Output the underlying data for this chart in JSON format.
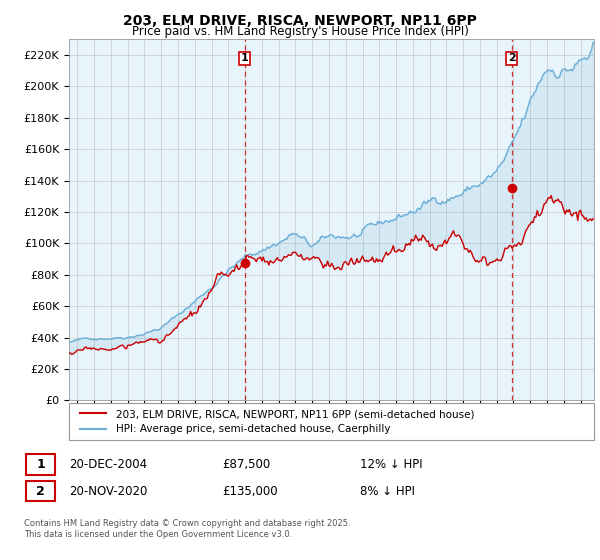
{
  "title": "203, ELM DRIVE, RISCA, NEWPORT, NP11 6PP",
  "subtitle": "Price paid vs. HM Land Registry's House Price Index (HPI)",
  "ylabel_ticks": [
    "£0",
    "£20K",
    "£40K",
    "£60K",
    "£80K",
    "£100K",
    "£120K",
    "£140K",
    "£160K",
    "£180K",
    "£200K",
    "£220K"
  ],
  "ytick_values": [
    0,
    20000,
    40000,
    60000,
    80000,
    100000,
    120000,
    140000,
    160000,
    180000,
    200000,
    220000
  ],
  "ylim": [
    0,
    230000
  ],
  "xlim_start": 1994.5,
  "xlim_end": 2025.8,
  "hpi_color": "#6baed6",
  "price_color": "#cc0000",
  "plot_bg_color": "#e8f4fb",
  "marker1_x": 2004.97,
  "marker1_y": 87500,
  "marker2_x": 2020.9,
  "marker2_y": 135000,
  "legend_label_red": "203, ELM DRIVE, RISCA, NEWPORT, NP11 6PP (semi-detached house)",
  "legend_label_blue": "HPI: Average price, semi-detached house, Caerphilly",
  "table_row1_num": "1",
  "table_row1_date": "20-DEC-2004",
  "table_row1_price": "£87,500",
  "table_row1_hpi": "12% ↓ HPI",
  "table_row2_num": "2",
  "table_row2_date": "20-NOV-2020",
  "table_row2_price": "£135,000",
  "table_row2_hpi": "8% ↓ HPI",
  "footer": "Contains HM Land Registry data © Crown copyright and database right 2025.\nThis data is licensed under the Open Government Licence v3.0.",
  "background_color": "#ffffff",
  "grid_color": "#bbbbbb"
}
